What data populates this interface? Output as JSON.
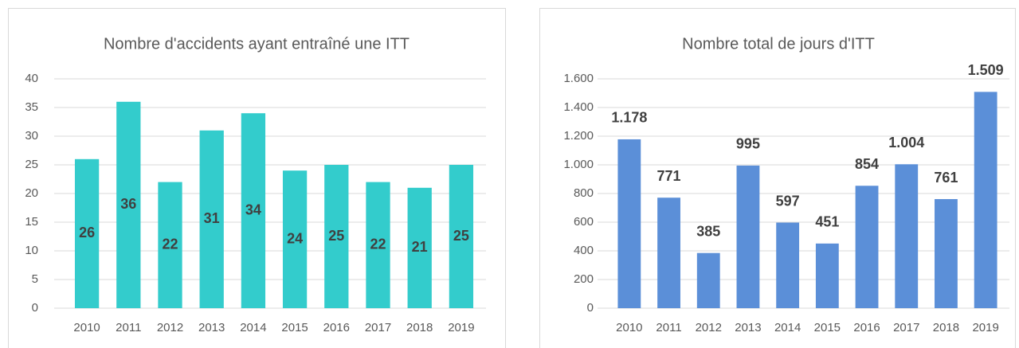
{
  "chart_data": [
    {
      "type": "bar",
      "title": "Nombre d'accidents ayant entraîné une ITT",
      "categories": [
        "2010",
        "2011",
        "2012",
        "2013",
        "2014",
        "2015",
        "2016",
        "2017",
        "2018",
        "2019"
      ],
      "values": [
        26,
        36,
        22,
        31,
        34,
        24,
        25,
        22,
        21,
        25
      ],
      "color": "#33cccc",
      "ylim": [
        0,
        40
      ],
      "yticks": [
        0,
        5,
        10,
        15,
        20,
        25,
        30,
        35,
        40
      ],
      "grid": true
    },
    {
      "type": "bar",
      "title": "Nombre total de jours d'ITT",
      "categories": [
        "2010",
        "2011",
        "2012",
        "2013",
        "2014",
        "2015",
        "2016",
        "2017",
        "2018",
        "2019"
      ],
      "values": [
        1178,
        771,
        385,
        995,
        597,
        451,
        854,
        1004,
        761,
        1509
      ],
      "value_labels": [
        "1.178",
        "771",
        "385",
        "995",
        "597",
        "451",
        "854",
        "1.004",
        "761",
        "1.509"
      ],
      "color": "#5b8fd8",
      "ylim": [
        0,
        1600
      ],
      "yticks": [
        0,
        200,
        400,
        600,
        800,
        {
          "value": 1000,
          "label": "1.000"
        },
        {
          "value": 1200,
          "label": "1.200"
        },
        {
          "value": 1400,
          "label": "1.400"
        },
        {
          "value": 1600,
          "label": "1.600"
        }
      ],
      "grid": true
    }
  ]
}
